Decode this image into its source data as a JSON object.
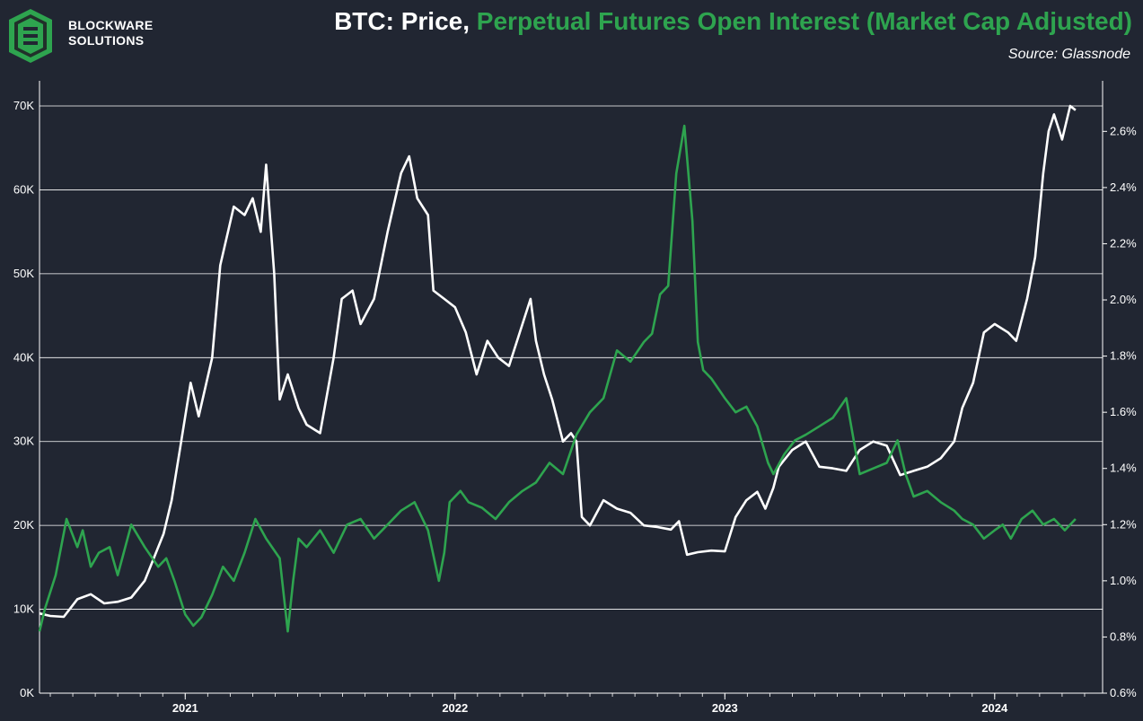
{
  "header": {
    "logo_line1": "BLOCKWARE",
    "logo_line2": "SOLUTIONS",
    "title_part1": "BTC: Price,",
    "title_part2": "Perpetual Futures Open Interest (Market Cap Adjusted)",
    "source": "Source: Glassnode"
  },
  "colors": {
    "background": "#212632",
    "price_line": "#ffffff",
    "oi_line": "#2ea44f",
    "grid": "#ffffff"
  },
  "chart_data": {
    "type": "line",
    "title": "BTC: Price, Perpetual Futures Open Interest (Market Cap Adjusted)",
    "source": "Glassnode",
    "x_range": [
      2020.46,
      2024.4
    ],
    "x_ticks": [
      {
        "value": 2021.0,
        "label": "2021"
      },
      {
        "value": 2022.0,
        "label": "2022"
      },
      {
        "value": 2023.0,
        "label": "2023"
      },
      {
        "value": 2024.0,
        "label": "2024"
      }
    ],
    "left_axis": {
      "range": [
        0,
        73000
      ],
      "ticks": [
        {
          "value": 0,
          "label": "0K"
        },
        {
          "value": 10000,
          "label": "10K"
        },
        {
          "value": 20000,
          "label": "20K"
        },
        {
          "value": 30000,
          "label": "30K"
        },
        {
          "value": 40000,
          "label": "40K"
        },
        {
          "value": 50000,
          "label": "50K"
        },
        {
          "value": 60000,
          "label": "60K"
        },
        {
          "value": 70000,
          "label": "70K"
        }
      ]
    },
    "right_axis": {
      "range": [
        0.6,
        2.78
      ],
      "ticks": [
        {
          "value": 0.6,
          "label": "0.6%"
        },
        {
          "value": 0.8,
          "label": "0.8%"
        },
        {
          "value": 1.0,
          "label": "1.0%"
        },
        {
          "value": 1.2,
          "label": "1.2%"
        },
        {
          "value": 1.4,
          "label": "1.4%"
        },
        {
          "value": 1.6,
          "label": "1.6%"
        },
        {
          "value": 1.8,
          "label": "1.8%"
        },
        {
          "value": 2.0,
          "label": "2.0%"
        },
        {
          "value": 2.2,
          "label": "2.2%"
        },
        {
          "value": 2.4,
          "label": "2.4%"
        },
        {
          "value": 2.6,
          "label": "2.6%"
        }
      ]
    },
    "series": [
      {
        "name": "BTC Price",
        "axis": "left",
        "x": [
          2020.46,
          2020.5,
          2020.55,
          2020.6,
          2020.65,
          2020.7,
          2020.75,
          2020.8,
          2020.85,
          2020.88,
          2020.92,
          2020.95,
          2020.98,
          2021.02,
          2021.05,
          2021.1,
          2021.13,
          2021.18,
          2021.22,
          2021.25,
          2021.28,
          2021.3,
          2021.33,
          2021.35,
          2021.38,
          2021.42,
          2021.45,
          2021.5,
          2021.55,
          2021.58,
          2021.62,
          2021.65,
          2021.7,
          2021.75,
          2021.8,
          2021.83,
          2021.86,
          2021.9,
          2021.92,
          2021.96,
          2022.0,
          2022.04,
          2022.08,
          2022.12,
          2022.16,
          2022.2,
          2022.25,
          2022.28,
          2022.3,
          2022.33,
          2022.36,
          2022.4,
          2022.43,
          2022.45,
          2022.47,
          2022.5,
          2022.55,
          2022.6,
          2022.65,
          2022.7,
          2022.75,
          2022.8,
          2022.83,
          2022.86,
          2022.9,
          2022.95,
          2023.0,
          2023.04,
          2023.08,
          2023.12,
          2023.15,
          2023.18,
          2023.2,
          2023.25,
          2023.3,
          2023.35,
          2023.4,
          2023.45,
          2023.5,
          2023.55,
          2023.6,
          2023.65,
          2023.7,
          2023.75,
          2023.8,
          2023.85,
          2023.88,
          2023.92,
          2023.96,
          2024.0,
          2024.05,
          2024.08,
          2024.12,
          2024.15,
          2024.18,
          2024.2,
          2024.22,
          2024.25,
          2024.28,
          2024.3
        ],
        "values": [
          9500,
          9200,
          9100,
          11200,
          11800,
          10700,
          10900,
          11400,
          13400,
          15800,
          19000,
          23000,
          29000,
          37000,
          33000,
          40000,
          51000,
          58000,
          57000,
          59000,
          55000,
          63000,
          50000,
          35000,
          38000,
          34000,
          32000,
          31000,
          40000,
          47000,
          48000,
          44000,
          47000,
          55000,
          62000,
          64000,
          59000,
          57000,
          48000,
          47000,
          46000,
          43000,
          38000,
          42000,
          40000,
          39000,
          44000,
          47000,
          42000,
          38000,
          35000,
          30000,
          31000,
          30000,
          21000,
          20000,
          23000,
          22000,
          21500,
          20000,
          19800,
          19500,
          20500,
          16500,
          16800,
          17000,
          16900,
          21000,
          23000,
          24000,
          22000,
          24500,
          27000,
          29000,
          30000,
          27000,
          26800,
          26500,
          29000,
          30000,
          29500,
          26000,
          26500,
          27000,
          28000,
          30000,
          34000,
          37000,
          43000,
          44000,
          43000,
          42000,
          47000,
          52000,
          62000,
          67000,
          69000,
          66000,
          70000,
          69500
        ]
      },
      {
        "name": "Perpetual Futures Open Interest (Market Cap Adjusted)",
        "axis": "right",
        "unit": "%",
        "x": [
          2020.46,
          2020.48,
          2020.52,
          2020.56,
          2020.6,
          2020.62,
          2020.65,
          2020.68,
          2020.72,
          2020.75,
          2020.8,
          2020.85,
          2020.9,
          2020.93,
          2020.96,
          2021.0,
          2021.03,
          2021.06,
          2021.1,
          2021.14,
          2021.18,
          2021.22,
          2021.26,
          2021.3,
          2021.35,
          2021.38,
          2021.4,
          2021.42,
          2021.45,
          2021.5,
          2021.55,
          2021.6,
          2021.65,
          2021.7,
          2021.75,
          2021.8,
          2021.85,
          2021.9,
          2021.94,
          2021.96,
          2021.98,
          2022.02,
          2022.05,
          2022.1,
          2022.15,
          2022.2,
          2022.25,
          2022.3,
          2022.35,
          2022.4,
          2022.45,
          2022.5,
          2022.55,
          2022.6,
          2022.65,
          2022.7,
          2022.73,
          2022.76,
          2022.79,
          2022.82,
          2022.85,
          2022.88,
          2022.9,
          2022.92,
          2022.95,
          2023.0,
          2023.04,
          2023.08,
          2023.12,
          2023.16,
          2023.18,
          2023.22,
          2023.26,
          2023.3,
          2023.35,
          2023.4,
          2023.45,
          2023.5,
          2023.55,
          2023.6,
          2023.64,
          2023.67,
          2023.7,
          2023.75,
          2023.8,
          2023.85,
          2023.88,
          2023.92,
          2023.96,
          2024.0,
          2024.03,
          2024.06,
          2024.1,
          2024.14,
          2024.18,
          2024.22,
          2024.26,
          2024.3
        ],
        "values": [
          0.82,
          0.9,
          1.02,
          1.22,
          1.12,
          1.18,
          1.05,
          1.1,
          1.12,
          1.02,
          1.2,
          1.12,
          1.05,
          1.08,
          1.0,
          0.88,
          0.84,
          0.87,
          0.95,
          1.05,
          1.0,
          1.1,
          1.22,
          1.15,
          1.08,
          0.82,
          1.0,
          1.15,
          1.12,
          1.18,
          1.1,
          1.2,
          1.22,
          1.15,
          1.2,
          1.25,
          1.28,
          1.18,
          1.0,
          1.1,
          1.28,
          1.32,
          1.28,
          1.26,
          1.22,
          1.28,
          1.32,
          1.35,
          1.42,
          1.38,
          1.52,
          1.6,
          1.65,
          1.82,
          1.78,
          1.85,
          1.88,
          2.02,
          2.05,
          2.45,
          2.62,
          2.28,
          1.85,
          1.75,
          1.72,
          1.65,
          1.6,
          1.62,
          1.55,
          1.42,
          1.38,
          1.45,
          1.5,
          1.52,
          1.55,
          1.58,
          1.65,
          1.38,
          1.4,
          1.42,
          1.5,
          1.38,
          1.3,
          1.32,
          1.28,
          1.25,
          1.22,
          1.2,
          1.15,
          1.18,
          1.2,
          1.15,
          1.22,
          1.25,
          1.2,
          1.22,
          1.18,
          1.22
        ]
      }
    ]
  }
}
